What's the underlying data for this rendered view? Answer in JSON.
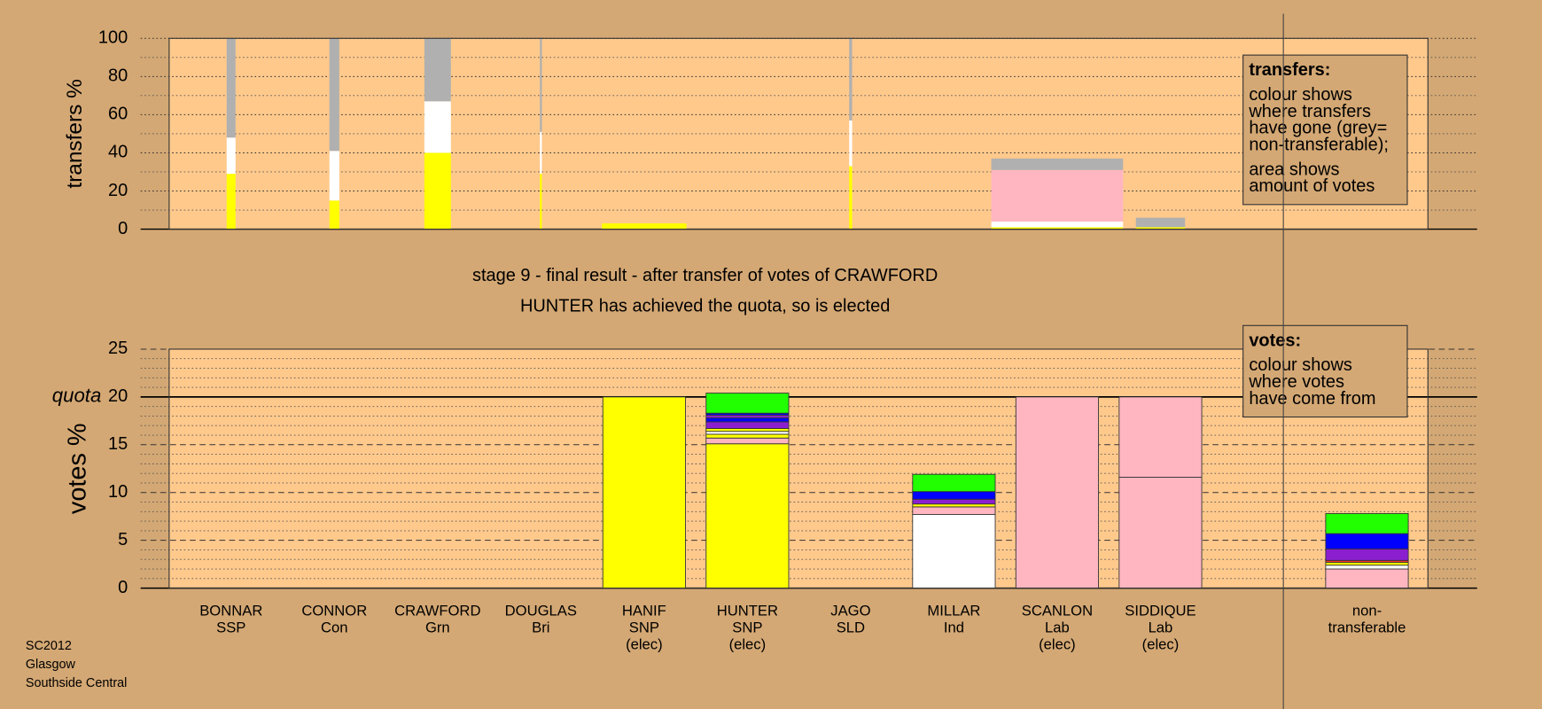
{
  "stage_title": "stage 9 - final result - after transfer of votes of CRAWFORD",
  "stage_subtitle": "HUNTER has achieved the quota, so is elected",
  "footer": [
    "SC2012",
    "Glasgow",
    "Southside Central"
  ],
  "chart_data": [
    {
      "type": "bar",
      "y_label": "transfers %",
      "ylim": [
        0,
        100
      ],
      "yticks": [
        0,
        20,
        40,
        60,
        80,
        100
      ],
      "minor_yticks": [
        10,
        30,
        50,
        70,
        90
      ],
      "grid": "dotted",
      "widths": [
        0.45,
        0.5,
        1.35,
        0.1,
        4.3,
        0,
        0.15,
        0,
        6.7,
        2.5,
        0
      ],
      "stacks": [
        [
          {
            "color": "#ffff00",
            "value": 29
          },
          {
            "color": "#ffffff",
            "value": 19
          },
          {
            "color": "#b0b0b0",
            "value": 52
          }
        ],
        [
          {
            "color": "#ffff00",
            "value": 15
          },
          {
            "color": "#ffffff",
            "value": 26
          },
          {
            "color": "#b0b0b0",
            "value": 59
          }
        ],
        [
          {
            "color": "#ffff00",
            "value": 40
          },
          {
            "color": "#ffffff",
            "value": 27
          },
          {
            "color": "#b0b0b0",
            "value": 33
          }
        ],
        [
          {
            "color": "#ffff00",
            "value": 29
          },
          {
            "color": "#ffffff",
            "value": 22
          },
          {
            "color": "#b0b0b0",
            "value": 49
          }
        ],
        [
          {
            "color": "#ffff00",
            "value": 3
          }
        ],
        [],
        [
          {
            "color": "#ffff00",
            "value": 33
          },
          {
            "color": "#ffffff",
            "value": 24
          },
          {
            "color": "#b0b0b0",
            "value": 43
          }
        ],
        [],
        [
          {
            "color": "#ffff00",
            "value": 1
          },
          {
            "color": "#ffffff",
            "value": 3
          },
          {
            "color": "#ffb6c1",
            "value": 27
          },
          {
            "color": "#b0b0b0",
            "value": 6
          }
        ],
        [
          {
            "color": "#ffff00",
            "value": 1
          },
          {
            "color": "#b0b0b0",
            "value": 5
          }
        ],
        []
      ],
      "legend_box": {
        "title": "transfers:",
        "lines": [
          [
            "colour shows",
            "where transfers",
            "have gone (grey=",
            "non-transferable);"
          ],
          [
            "area shows",
            "amount of votes"
          ]
        ]
      }
    },
    {
      "type": "bar",
      "y_label": "votes %",
      "ylim": [
        0,
        25
      ],
      "yticks": [
        0,
        5,
        10,
        15,
        20,
        25
      ],
      "minor_yticks": [
        1,
        2,
        3,
        4,
        6,
        7,
        8,
        9,
        11,
        12,
        13,
        14,
        16,
        17,
        18,
        19,
        21,
        22,
        23,
        24
      ],
      "quota": {
        "value": 20,
        "label": "quota"
      },
      "grid": "dashed",
      "categories": [
        [
          "BONNAR",
          "SSP"
        ],
        [
          "CONNOR",
          "Con"
        ],
        [
          "CRAWFORD",
          "Grn"
        ],
        [
          "DOUGLAS",
          "Bri"
        ],
        [
          "HANIF",
          "SNP",
          "(elec)"
        ],
        [
          "HUNTER",
          "SNP",
          "(elec)"
        ],
        [
          "JAGO",
          "SLD"
        ],
        [
          "MILLAR",
          "Ind"
        ],
        [
          "SCANLON",
          "Lab",
          "(elec)"
        ],
        [
          "SIDDIQUE",
          "Lab",
          "(elec)"
        ],
        [
          "non-",
          "transferable"
        ]
      ],
      "stacks": [
        [],
        [],
        [],
        [],
        [
          {
            "color": "#ffff00",
            "value": 20
          }
        ],
        [
          {
            "color": "#ffff00",
            "value": 15.1
          },
          {
            "color": "#ffb6c1",
            "value": 0.6
          },
          {
            "color": "#ffff00",
            "value": 0.4
          },
          {
            "color": "#ffffff",
            "value": 0.3
          },
          {
            "color": "#ffff00",
            "value": 0.3
          },
          {
            "color": "#8b1fcf",
            "value": 0.7
          },
          {
            "color": "#0000ff",
            "value": 0.4
          },
          {
            "color": "#8b1fcf",
            "value": 0.3
          },
          {
            "color": "#0000ff",
            "value": 0.2
          },
          {
            "color": "#22ff00",
            "value": 2.1
          }
        ],
        [],
        [
          {
            "color": "#ffffff",
            "value": 7.7
          },
          {
            "color": "#ffb6c1",
            "value": 0.8
          },
          {
            "color": "#ffff00",
            "value": 0.3
          },
          {
            "color": "#8b1fcf",
            "value": 0.5
          },
          {
            "color": "#0000ff",
            "value": 0.8
          },
          {
            "color": "#22ff00",
            "value": 1.8
          }
        ],
        [
          {
            "color": "#ffb6c1",
            "value": 20
          }
        ],
        [
          {
            "color": "#ffb6c1",
            "value": 11.6
          },
          {
            "color": "#ffb6c1",
            "value": 8.4
          }
        ],
        [
          {
            "color": "#ffb6c1",
            "value": 2.0
          },
          {
            "color": "#ffffff",
            "value": 0.4
          },
          {
            "color": "#ffff00",
            "value": 0.3
          },
          {
            "color": "#ff3030",
            "value": 0.2
          },
          {
            "color": "#8b1fcf",
            "value": 1.2
          },
          {
            "color": "#0000ff",
            "value": 1.6
          },
          {
            "color": "#22ff00",
            "value": 2.1
          }
        ]
      ],
      "legend_box": {
        "title": "votes:",
        "lines": [
          [
            "colour shows",
            "where votes",
            "have come from"
          ]
        ]
      }
    }
  ]
}
